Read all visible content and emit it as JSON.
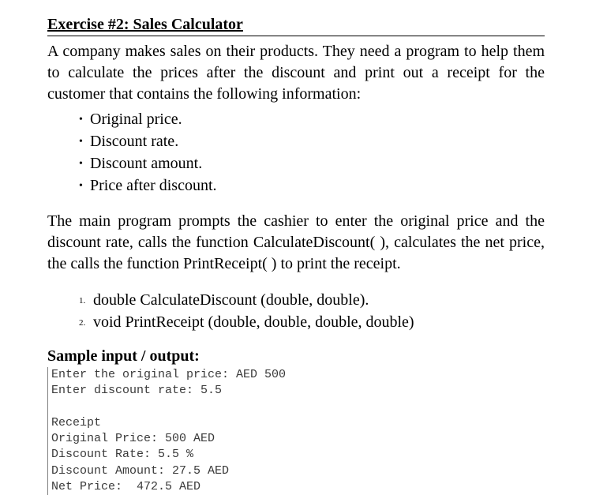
{
  "title": "Exercise #2: Sales Calculator",
  "intro": "A company makes sales on their products. They need a program to help them to calculate the prices after the discount and print out a receipt for the customer that contains the following information:",
  "bullets": [
    "Original price.",
    "Discount rate.",
    "Discount amount.",
    "Price after discount."
  ],
  "para2": "The main program prompts the cashier to enter the original price and the discount rate, calls the function CalculateDiscount( ), calculates the net price, the calls the function PrintReceipt( ) to print the receipt.",
  "functions": [
    "double CalculateDiscount (double, double).",
    "void PrintReceipt (double, double, double, double)"
  ],
  "sample_title": "Sample input / output:",
  "code": "Enter the original price: AED 500\nEnter discount rate: 5.5\n\nReceipt\nOriginal Price: 500 AED\nDiscount Rate: 5.5 %\nDiscount Amount: 27.5 AED\nNet Price:  472.5 AED",
  "styling": {
    "body_font": "Times New Roman",
    "body_fontsize": 20,
    "code_font": "Consolas",
    "code_fontsize": 15,
    "code_color": "#3a3a3a",
    "text_color": "#000000",
    "background": "#ffffff",
    "border_color": "#808080"
  }
}
